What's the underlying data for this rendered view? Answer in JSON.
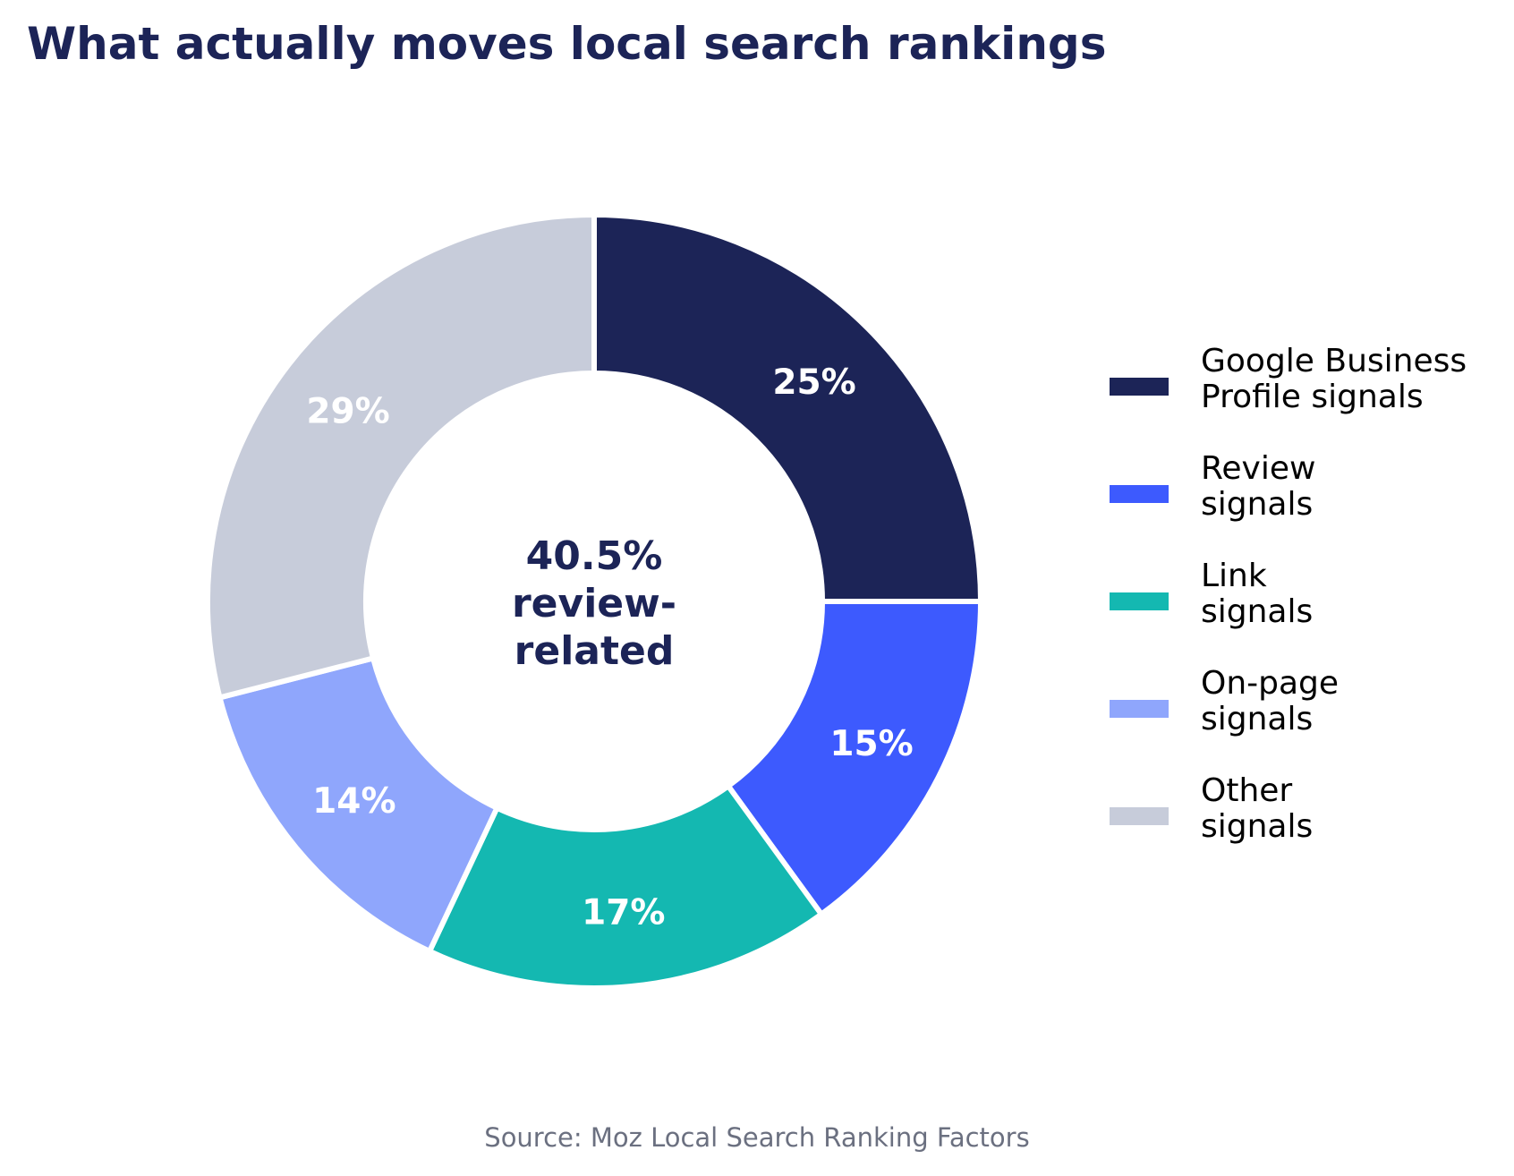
{
  "chart_data": {
    "type": "pie",
    "subtype": "donut",
    "title": "What actually moves local search rankings",
    "center_label": {
      "value": "40.5%",
      "lines": [
        "review-",
        "related"
      ]
    },
    "categories": [
      "Google Business\nProfile signals",
      "Review\nsignals",
      "Link\nsignals",
      "On-page\nsignals",
      "Other\nsignals"
    ],
    "values": [
      25,
      15,
      17,
      14,
      29
    ],
    "slice_labels": [
      "25%",
      "15%",
      "17%",
      "14%",
      "29%"
    ],
    "colors": [
      "#1c2457",
      "#3d5afe",
      "#14b8b1",
      "#8fa6fc",
      "#c7ccda"
    ],
    "legend_position": "right",
    "source": "Source: Moz Local Search Ranking Factors"
  }
}
